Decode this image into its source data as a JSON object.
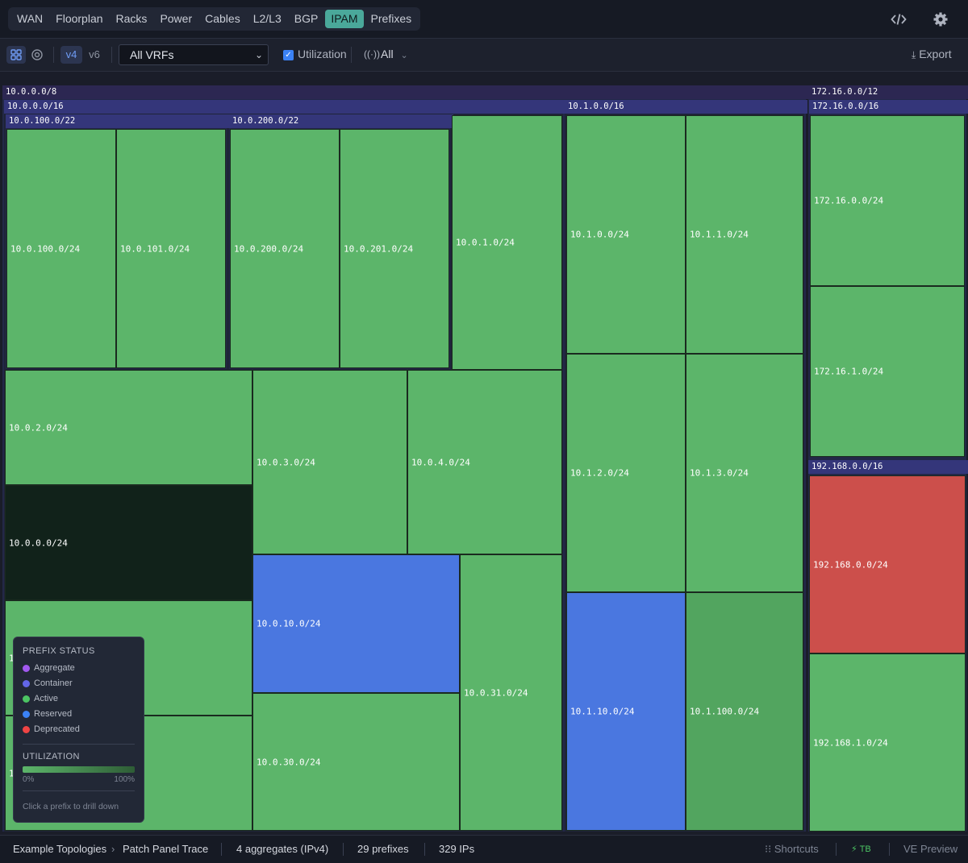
{
  "nav": {
    "tabs": [
      "WAN",
      "Floorplan",
      "Racks",
      "Power",
      "Cables",
      "L2/L3",
      "BGP",
      "IPAM",
      "Prefixes"
    ],
    "active_tab": "IPAM",
    "code_icon": "code-icon",
    "settings_icon": "gear-icon"
  },
  "toolbar": {
    "version_v4": "v4",
    "version_v6": "v6",
    "vrf_value": "All VRFs",
    "utilization_label": "Utilization",
    "filter_value": "All",
    "export_label": "Export"
  },
  "treemap": {
    "agg_10": "10.0.0.0/8",
    "agg_172": "172.16.0.0/12",
    "c_10_0": "10.0.0.0/16",
    "c_10_1": "10.1.0.0/16",
    "c_172_16": "172.16.0.0/16",
    "c_192_168": "192.168.0.0/16",
    "c_10_0_100": "10.0.100.0/22",
    "c_10_0_200": "10.0.200.0/22",
    "p_10_0_100": "10.0.100.0/24",
    "p_10_0_101": "10.0.101.0/24",
    "p_10_0_200": "10.0.200.0/24",
    "p_10_0_201": "10.0.201.0/24",
    "p_10_0_1": "10.0.1.0/24",
    "p_10_0_2": "10.0.2.0/24",
    "p_10_0_3": "10.0.3.0/24",
    "p_10_0_4": "10.0.4.0/24",
    "p_10_0_0": "10.0.0.0/24",
    "p_10_0_10": "10.0.10.0/24",
    "p_10_0_31": "10.0.31.0/24",
    "p_10_0_30": "10.0.30.0/24",
    "p_10_1_0": "10.1.0.0/24",
    "p_10_1_1": "10.1.1.0/24",
    "p_10_1_2": "10.1.2.0/24",
    "p_10_1_3": "10.1.3.0/24",
    "p_10_1_10": "10.1.10.0/24",
    "p_10_1_100": "10.1.100.0/24",
    "p_172_16_0": "172.16.0.0/24",
    "p_172_16_1": "172.16.1.0/24",
    "p_192_168_0": "192.168.0.0/24",
    "p_192_168_1": "192.168.1.0/24",
    "partial_label_a": "1",
    "partial_label_b": "1"
  },
  "legend": {
    "title": "PREFIX STATUS",
    "items": [
      {
        "label": "Aggregate",
        "color": "#a259f0"
      },
      {
        "label": "Container",
        "color": "#6366e8"
      },
      {
        "label": "Active",
        "color": "#4cc463"
      },
      {
        "label": "Reserved",
        "color": "#3b82f6"
      },
      {
        "label": "Deprecated",
        "color": "#ef4444"
      }
    ],
    "util_title": "UTILIZATION",
    "util_min": "0%",
    "util_max": "100%",
    "hint": "Click a prefix to drill down"
  },
  "statusbar": {
    "crumb1": "Example Topologies",
    "crumb2": "Patch Panel Trace",
    "aggregates": "4 aggregates (IPv4)",
    "prefixes": "29 prefixes",
    "ips": "329 IPs",
    "shortcuts": "Shortcuts",
    "tb": "TB",
    "preview": "VE Preview"
  }
}
